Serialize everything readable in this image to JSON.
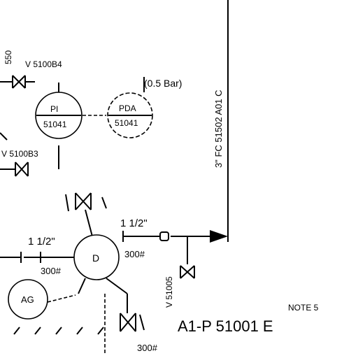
{
  "labels": {
    "line_spec_vertical": "3\" FC 51502 A01 C",
    "valve_top": "V 5100B4",
    "valve_mid": "V 5100B3",
    "valve_small_left": "550",
    "pressure_note": "(0.5 Bar)",
    "pi_tag": "PI",
    "pi_num": "51041",
    "pda_tag": "PDA",
    "pda_num": "51041",
    "size_left": "1 1/2\"",
    "size_right": "1 1/2\"",
    "rating_left": "300#",
    "rating_mid": "300#",
    "rating_bottom": "300#",
    "drain_valve": "V 51005",
    "equipment_center": "D",
    "equipment_left": "AG",
    "note_ref": "NOTE 5",
    "drawing_ref": "A1-P  51001  E"
  }
}
